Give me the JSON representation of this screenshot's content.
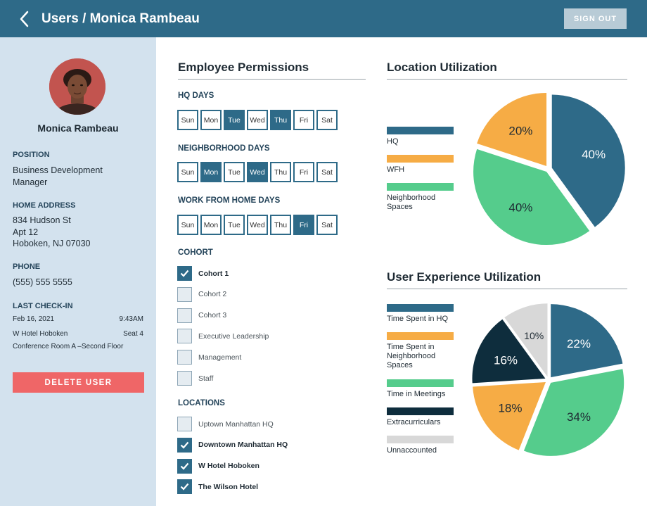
{
  "header": {
    "title": "Users / Monica Rambeau",
    "sign_out_label": "SIGN OUT"
  },
  "profile": {
    "name": "Monica Rambeau",
    "position_label": "POSITION",
    "position_lines": [
      "Business Development",
      "Manager"
    ],
    "address_label": "HOME ADDRESS",
    "address_lines": [
      "834 Hudson St",
      "Apt 12",
      "Hoboken, NJ 07030"
    ],
    "phone_label": "PHONE",
    "phone": "(555) 555 5555",
    "checkin_label": "LAST CHECK-IN",
    "checkin_date": "Feb 16, 2021",
    "checkin_time": "9:43AM",
    "checkin_place": "W Hotel Hoboken",
    "checkin_seat": "Seat 4",
    "checkin_room": "Conference Room A –Second Floor",
    "delete_label": "DELETE USER"
  },
  "permissions": {
    "title": "Employee Permissions",
    "day_names": [
      "Sun",
      "Mon",
      "Tue",
      "Wed",
      "Thu",
      "Fri",
      "Sat"
    ],
    "hq_label": "HQ DAYS",
    "hq_selected": [
      false,
      false,
      true,
      false,
      true,
      false,
      false
    ],
    "neighborhood_label": "NEIGHBORHOOD DAYS",
    "neighborhood_selected": [
      false,
      true,
      false,
      true,
      false,
      false,
      false
    ],
    "wfh_label": "WORK FROM HOME DAYS",
    "wfh_selected": [
      false,
      false,
      false,
      false,
      false,
      true,
      false
    ],
    "cohort_label": "COHORT",
    "cohorts": [
      {
        "label": "Cohort 1",
        "checked": true
      },
      {
        "label": "Cohort 2",
        "checked": false
      },
      {
        "label": "Cohort 3",
        "checked": false
      },
      {
        "label": "Executive Leadership",
        "checked": false
      },
      {
        "label": "Management",
        "checked": false
      },
      {
        "label": "Staff",
        "checked": false
      }
    ],
    "locations_label": "LOCATIONS",
    "locations": [
      {
        "label": "Uptown Manhattan  HQ",
        "checked": false
      },
      {
        "label": "Downtown Manhattan HQ",
        "checked": true
      },
      {
        "label": "W Hotel Hoboken",
        "checked": true
      },
      {
        "label": "The Wilson Hotel",
        "checked": true
      }
    ]
  },
  "colors": {
    "primary": "#2e6a88",
    "delete": "#ef6667",
    "sidebar": "#d3e2ee",
    "orange": "#f6ac45",
    "green": "#55cc8c",
    "navy": "#0e2d3d",
    "gray": "#d8d8d8"
  },
  "chart_data": [
    {
      "type": "pie",
      "title": "Location Utilization",
      "labels": [
        "HQ",
        "WFH",
        "Neighborhood Spaces"
      ],
      "values": [
        40,
        20,
        40
      ],
      "value_labels": [
        "40%",
        "20%",
        "40%"
      ],
      "colors": [
        "#2e6a88",
        "#f6ac45",
        "#55cc8c"
      ]
    },
    {
      "type": "pie",
      "title": "User Experience Utilization",
      "labels": [
        "Time Spent in HQ",
        "Time Spent in Neighborhood Spaces",
        "Time in Meetings",
        "Extracurriculars",
        "Unnaccounted"
      ],
      "values": [
        22,
        18,
        34,
        16,
        10
      ],
      "value_labels": [
        "22%",
        "18%",
        "34%",
        "16%",
        "10%"
      ],
      "colors": [
        "#2e6a88",
        "#f6ac45",
        "#55cc8c",
        "#0e2d3d",
        "#d8d8d8"
      ]
    }
  ]
}
